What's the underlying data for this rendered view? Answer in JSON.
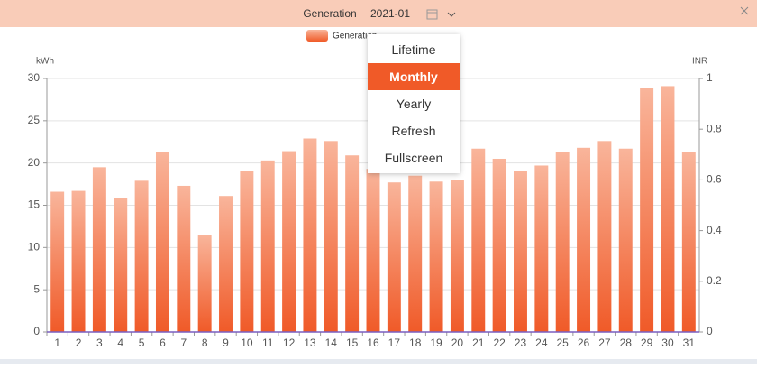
{
  "header": {
    "title": "Generation",
    "date": "2021-01"
  },
  "menu": {
    "items": [
      "Lifetime",
      "Monthly",
      "Yearly",
      "Refresh",
      "Fullscreen"
    ],
    "active": 1
  },
  "chart_data": {
    "type": "bar",
    "y_label": "kWh",
    "y2_label": "INR",
    "categories": [
      1,
      2,
      3,
      4,
      5,
      6,
      7,
      8,
      9,
      10,
      11,
      12,
      13,
      14,
      15,
      16,
      17,
      18,
      19,
      20,
      21,
      22,
      23,
      24,
      25,
      26,
      27,
      28,
      29,
      30,
      31
    ],
    "series": [
      {
        "name": "Generation",
        "color": "#f05a28",
        "values": [
          16.6,
          16.7,
          19.5,
          15.9,
          17.9,
          21.3,
          17.3,
          11.5,
          16.1,
          19.1,
          20.3,
          21.4,
          22.9,
          22.6,
          20.9,
          19.3,
          17.7,
          18.5,
          17.8,
          18.0,
          21.7,
          20.5,
          19.1,
          19.7,
          21.3,
          21.8,
          22.6,
          21.7,
          28.9,
          29.1,
          21.3
        ]
      }
    ],
    "ylim": [
      0,
      30
    ],
    "yticks": [
      0,
      5,
      10,
      15,
      20,
      25,
      30
    ],
    "y2lim": [
      0,
      1
    ],
    "y2ticks": [
      0,
      0.2,
      0.4,
      0.6,
      0.8,
      1
    ],
    "grid": true
  }
}
